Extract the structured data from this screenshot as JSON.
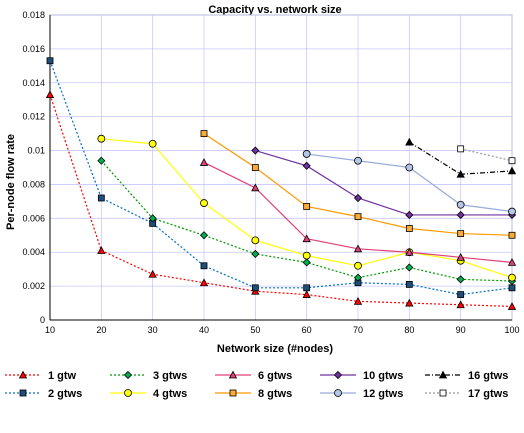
{
  "chart_data": {
    "type": "line",
    "title": "Capacity vs. network size",
    "xlabel": "Network size (#nodes)",
    "ylabel": "Per-node flow rate",
    "x_ticks": [
      10,
      20,
      30,
      40,
      50,
      60,
      70,
      80,
      90,
      100
    ],
    "y_ticks": [
      "0",
      "0.002",
      "0.004",
      "0.006",
      "0.008",
      "0.01",
      "0.012",
      "0.014",
      "0.016",
      "0.018"
    ],
    "xlim": [
      10,
      100
    ],
    "ylim": [
      0,
      0.018
    ],
    "grid": true,
    "legend_position": "bottom",
    "series": [
      {
        "name": "1 gtw",
        "color": "#ff0000",
        "marker": "triangle",
        "fill": "#ff0000",
        "dash": "2,2",
        "x": [
          10,
          20,
          30,
          40,
          50,
          60,
          70,
          80,
          90,
          100
        ],
        "y": [
          0.0133,
          0.0041,
          0.0027,
          0.0022,
          0.0017,
          0.0015,
          0.0011,
          0.001,
          0.0009,
          0.0008
        ]
      },
      {
        "name": "2 gtws",
        "color": "#0070c0",
        "marker": "square",
        "fill": "#1f4e79",
        "dash": "2,2",
        "x": [
          10,
          20,
          30,
          40,
          50,
          60,
          70,
          80,
          90,
          100
        ],
        "y": [
          0.0153,
          0.0072,
          0.0057,
          0.0032,
          0.0019,
          0.0019,
          0.0022,
          0.0021,
          0.0015,
          0.0019
        ]
      },
      {
        "name": "3 gtws",
        "color": "#009900",
        "marker": "diamond",
        "fill": "#00b050",
        "dash": "2,2",
        "x": [
          20,
          30,
          40,
          50,
          60,
          70,
          80,
          90,
          100
        ],
        "y": [
          0.0094,
          0.006,
          0.005,
          0.0039,
          0.0034,
          0.0025,
          0.0031,
          0.0024,
          0.0023
        ]
      },
      {
        "name": "4 gtws",
        "color": "#ffff00",
        "marker": "circle",
        "fill": "#ffff00",
        "dash": "",
        "x": [
          20,
          30,
          40,
          50,
          60,
          70,
          80,
          90,
          100
        ],
        "y": [
          0.0107,
          0.0104,
          0.0069,
          0.0047,
          0.0038,
          0.0032,
          0.004,
          0.0035,
          0.0025
        ]
      },
      {
        "name": "6 gtws",
        "color": "#e0407a",
        "marker": "triangle",
        "fill": "#e0407a",
        "dash": "",
        "x": [
          40,
          50,
          60,
          70,
          80,
          90,
          100
        ],
        "y": [
          0.0093,
          0.0078,
          0.0048,
          0.0042,
          0.004,
          0.0037,
          0.0034
        ]
      },
      {
        "name": "8 gtws",
        "color": "#ff9900",
        "marker": "square",
        "fill": "#ffaa33",
        "dash": "",
        "x": [
          40,
          50,
          60,
          70,
          80,
          90,
          100
        ],
        "y": [
          0.011,
          0.009,
          0.0067,
          0.0061,
          0.0054,
          0.0051,
          0.005
        ]
      },
      {
        "name": "10 gtws",
        "color": "#7030a0",
        "marker": "diamond",
        "fill": "#7030a0",
        "dash": "",
        "x": [
          50,
          60,
          70,
          80,
          90,
          100
        ],
        "y": [
          0.01,
          0.0091,
          0.0072,
          0.0062,
          0.0062,
          0.0062
        ]
      },
      {
        "name": "12 gtws",
        "color": "#99aadd",
        "marker": "circle",
        "fill": "#b4c7e7",
        "dash": "",
        "x": [
          60,
          70,
          80,
          90,
          100
        ],
        "y": [
          0.0098,
          0.0094,
          0.009,
          0.0068,
          0.0064
        ]
      },
      {
        "name": "16 gtws",
        "color": "#000000",
        "marker": "triangle",
        "fill": "#000000",
        "dash": "5,2,1,2",
        "x": [
          80,
          90,
          100
        ],
        "y": [
          0.0105,
          0.0086,
          0.0088
        ]
      },
      {
        "name": "17 gtws",
        "color": "#999999",
        "marker": "square",
        "fill": "#ffffff",
        "dash": "2,2",
        "x": [
          90,
          100
        ],
        "y": [
          0.0101,
          0.0094
        ]
      }
    ]
  }
}
